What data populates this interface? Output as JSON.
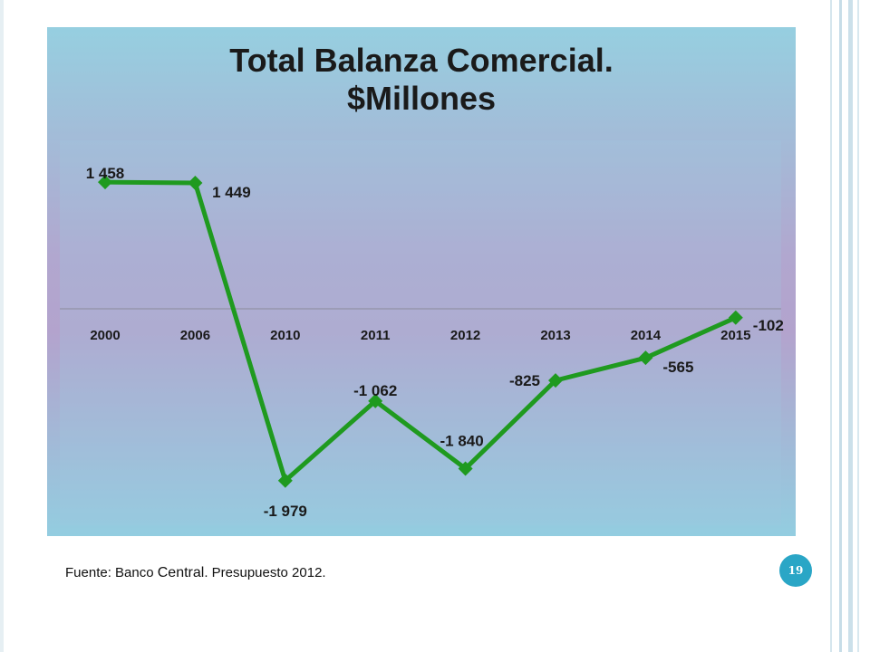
{
  "slide": {
    "title_line1": "Total Balanza Comercial.",
    "title_line2": "$Millones",
    "source_prefix": "Fuente: Banco ",
    "source_emph": "Central",
    "source_suffix": ". Presupuesto 2012.",
    "page_number": "19"
  },
  "colors": {
    "series": "#1f9a1f",
    "panel_top": "#96cfe0",
    "panel_mid": "#b1a7cf",
    "badge": "#2aa6c6"
  },
  "chart_data": {
    "type": "line",
    "title": "Total Balanza Comercial. $Millones",
    "categories": [
      "2000",
      "2006",
      "2010",
      "2011",
      "2012",
      "2013",
      "2014",
      "2015"
    ],
    "series": [
      {
        "values": [
          1458,
          1449,
          -1979,
          -1062,
          -1840,
          -825,
          -565,
          -102
        ],
        "labels": [
          "1 458",
          "1 449",
          "-1 979",
          "-1 062",
          "-1 840",
          "-825",
          "-565",
          "-102"
        ]
      }
    ],
    "ylim": [
      -2200,
      1800
    ],
    "grid": false,
    "legend": "none",
    "marker": "diamond"
  }
}
